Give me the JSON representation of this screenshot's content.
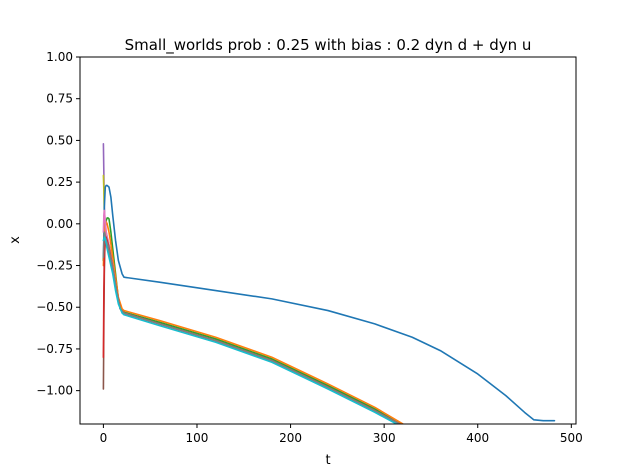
{
  "chart_data": {
    "type": "line",
    "title": "Small_worlds prob : 0.25 with bias : 0.2 dyn d + dyn u",
    "xlabel": "t",
    "ylabel": "x",
    "xlim": [
      -25,
      505
    ],
    "ylim": [
      -1.2,
      1.0
    ],
    "xticks": [
      "0",
      "100",
      "200",
      "300",
      "400",
      "500"
    ],
    "yticks": [
      "1.00",
      "0.75",
      "0.50",
      "0.25",
      "0.00",
      "−0.25",
      "−0.50",
      "−0.75",
      "−1.00"
    ],
    "grid": false,
    "series": [
      {
        "color": "#9467bd",
        "x": [
          0,
          0.5,
          1,
          2,
          3,
          4,
          5,
          7,
          10,
          14,
          18,
          22,
          60,
          120,
          180,
          240,
          290,
          320
        ],
        "y": [
          0.48,
          0.3,
          0.1,
          -0.05,
          -0.1,
          -0.12,
          -0.14,
          -0.18,
          -0.26,
          -0.4,
          -0.51,
          -0.535,
          -0.6,
          -0.7,
          -0.82,
          -0.98,
          -1.12,
          -1.21
        ]
      },
      {
        "color": "#bcbd22",
        "x": [
          0,
          0.5,
          1,
          2,
          3,
          4,
          5,
          7,
          10,
          14,
          18,
          22,
          60,
          120,
          180,
          240,
          290,
          320
        ],
        "y": [
          0.29,
          0.2,
          0.05,
          -0.02,
          -0.05,
          -0.08,
          -0.1,
          -0.15,
          -0.24,
          -0.4,
          -0.51,
          -0.535,
          -0.6,
          -0.7,
          -0.82,
          -0.98,
          -1.12,
          -1.21
        ]
      },
      {
        "color": "#1f77b4",
        "x": [
          0,
          1,
          2,
          3,
          4,
          6,
          8,
          10,
          13,
          16,
          20,
          22,
          60,
          120,
          180,
          240,
          290,
          330,
          360,
          400,
          430,
          450,
          460,
          470,
          482
        ],
        "y": [
          -0.22,
          0.1,
          0.22,
          0.23,
          0.23,
          0.22,
          0.16,
          0.05,
          -0.1,
          -0.22,
          -0.3,
          -0.32,
          -0.35,
          -0.4,
          -0.45,
          -0.52,
          -0.6,
          -0.68,
          -0.76,
          -0.9,
          -1.03,
          -1.13,
          -1.175,
          -1.18,
          -1.18
        ]
      },
      {
        "color": "#2ca02c",
        "x": [
          0,
          1,
          2,
          3,
          4,
          5,
          6,
          8,
          10,
          13,
          16,
          20,
          22,
          60,
          120,
          180,
          240,
          290,
          320
        ],
        "y": [
          -0.22,
          -0.1,
          -0.02,
          0.02,
          0.035,
          0.035,
          0.03,
          -0.05,
          -0.15,
          -0.3,
          -0.45,
          -0.52,
          -0.53,
          -0.59,
          -0.69,
          -0.81,
          -0.97,
          -1.11,
          -1.21
        ]
      },
      {
        "color": "#ff7f0e",
        "x": [
          0,
          1,
          2,
          4,
          6,
          8,
          10,
          13,
          16,
          20,
          22,
          60,
          120,
          180,
          240,
          290,
          320
        ],
        "y": [
          -0.25,
          -0.08,
          0.02,
          0.0,
          -0.05,
          -0.12,
          -0.2,
          -0.32,
          -0.44,
          -0.51,
          -0.52,
          -0.58,
          -0.68,
          -0.8,
          -0.96,
          -1.1,
          -1.2
        ]
      },
      {
        "color": "#e377c2",
        "x": [
          0,
          0.5,
          1,
          2,
          3,
          5,
          7,
          10,
          14,
          18,
          22,
          60,
          120,
          180,
          240,
          290,
          320
        ],
        "y": [
          -0.05,
          0.05,
          0.08,
          0.02,
          -0.05,
          -0.1,
          -0.16,
          -0.25,
          -0.4,
          -0.51,
          -0.535,
          -0.6,
          -0.7,
          -0.82,
          -0.98,
          -1.12,
          -1.21
        ]
      },
      {
        "color": "#8c564b",
        "x": [
          0,
          0.5,
          1,
          1.5,
          2,
          3,
          5,
          7,
          10,
          14,
          18,
          22,
          60,
          120,
          180,
          240,
          290,
          320
        ],
        "y": [
          -0.99,
          -0.6,
          -0.3,
          -0.15,
          -0.1,
          -0.12,
          -0.15,
          -0.2,
          -0.27,
          -0.4,
          -0.51,
          -0.535,
          -0.6,
          -0.7,
          -0.82,
          -0.98,
          -1.12,
          -1.21
        ]
      },
      {
        "color": "#d62728",
        "x": [
          0,
          0.5,
          1,
          2,
          3,
          5,
          7,
          10,
          14,
          18,
          22,
          60,
          120,
          180,
          240,
          290,
          320
        ],
        "y": [
          -0.8,
          -0.4,
          -0.2,
          -0.1,
          -0.08,
          -0.12,
          -0.17,
          -0.26,
          -0.4,
          -0.51,
          -0.535,
          -0.6,
          -0.7,
          -0.82,
          -0.98,
          -1.12,
          -1.21
        ]
      },
      {
        "color": "#7f7f7f",
        "x": [
          0,
          0.5,
          1,
          2,
          3,
          5,
          7,
          10,
          14,
          18,
          22,
          60,
          120,
          180,
          240,
          290,
          320
        ],
        "y": [
          -0.2,
          -0.1,
          -0.05,
          -0.08,
          -0.1,
          -0.13,
          -0.18,
          -0.26,
          -0.4,
          -0.51,
          -0.535,
          -0.6,
          -0.7,
          -0.82,
          -0.98,
          -1.12,
          -1.21
        ]
      },
      {
        "color": "#17becf",
        "x": [
          0,
          1,
          2,
          3,
          4,
          6,
          8,
          10,
          13,
          16,
          20,
          22,
          60,
          120,
          180,
          240,
          290,
          320
        ],
        "y": [
          -0.1,
          -0.08,
          -0.09,
          -0.12,
          -0.15,
          -0.2,
          -0.25,
          -0.3,
          -0.4,
          -0.48,
          -0.535,
          -0.545,
          -0.61,
          -0.71,
          -0.83,
          -0.99,
          -1.13,
          -1.22
        ]
      }
    ]
  }
}
